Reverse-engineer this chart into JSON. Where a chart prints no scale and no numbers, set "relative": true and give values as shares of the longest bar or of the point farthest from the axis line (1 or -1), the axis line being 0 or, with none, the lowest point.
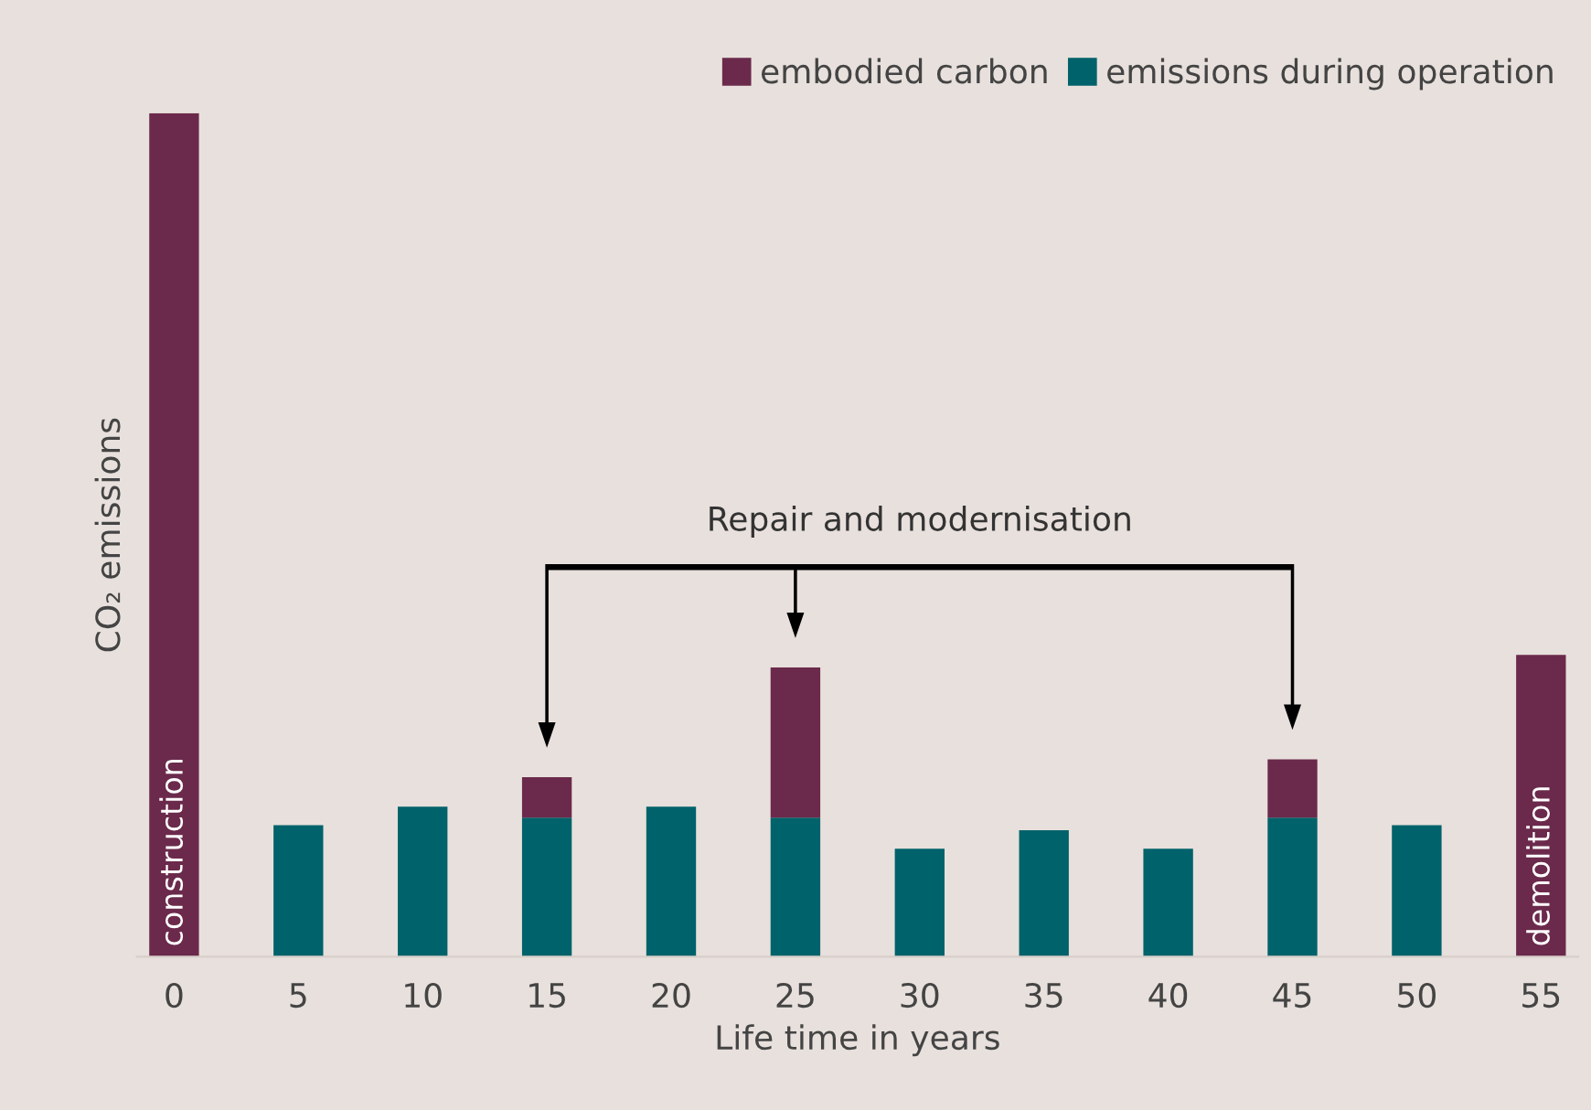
{
  "chart_data": {
    "type": "bar",
    "stacked": true,
    "relative": true,
    "xlabel": "Life time in years",
    "ylabel": "CO₂ emissions",
    "categories": [
      "0",
      "5",
      "10",
      "15",
      "20",
      "25",
      "30",
      "35",
      "40",
      "45",
      "50",
      "55"
    ],
    "series": [
      {
        "name": "emissions during operation",
        "color": "#00626a",
        "values": [
          null,
          0.156,
          0.178,
          0.165,
          0.178,
          0.165,
          0.128,
          0.15,
          0.128,
          0.165,
          0.156,
          null
        ]
      },
      {
        "name": "embodied carbon",
        "color": "#6b2a4b",
        "values": [
          1.0,
          null,
          null,
          0.048,
          null,
          0.178,
          null,
          null,
          null,
          0.069,
          null,
          0.358
        ]
      }
    ],
    "annotations": [
      "construction",
      "demolition",
      "Repair and modernisation"
    ],
    "legend": "top right",
    "grid": false
  }
}
